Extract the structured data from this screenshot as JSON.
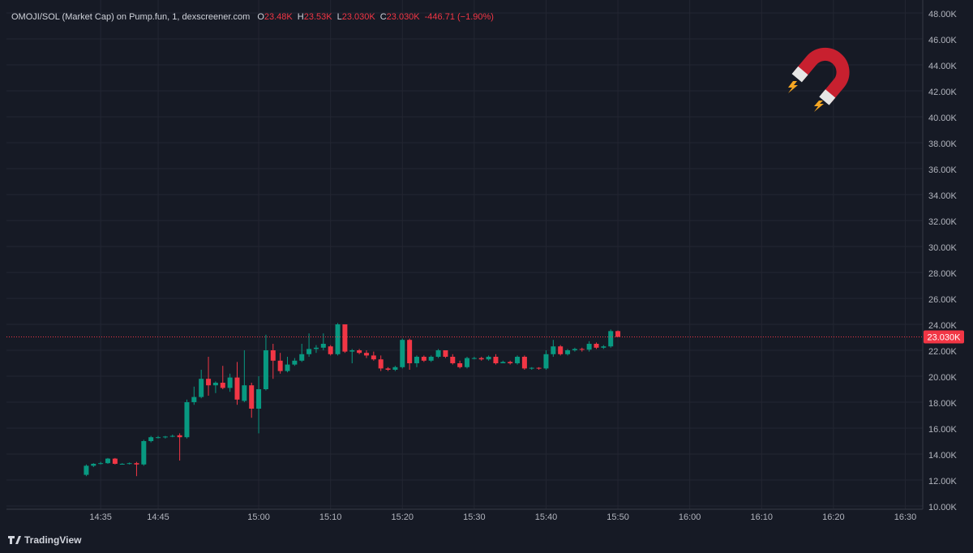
{
  "chart_data": {
    "type": "candlestick",
    "title": "OMOJI/SOL (Market Cap) on Pump.fun, 1, dexscreener.com",
    "ohlc_legend": [
      {
        "key": "O",
        "value": "23.48K"
      },
      {
        "key": "H",
        "value": "23.53K"
      },
      {
        "key": "L",
        "value": "23.030K"
      },
      {
        "key": "C",
        "value": "23.030K"
      }
    ],
    "change": "-446.71 (−1.90%)",
    "branding": "TradingView",
    "up_color": "#089981",
    "down_color": "#f23645",
    "grid": true,
    "last_price": {
      "value": 23030,
      "label": "23.030K"
    },
    "ylim": [
      9750,
      48500
    ],
    "yticks": [
      {
        "value": 10000,
        "label": "10.00K"
      },
      {
        "value": 12000,
        "label": "12.00K"
      },
      {
        "value": 14000,
        "label": "14.00K"
      },
      {
        "value": 16000,
        "label": "16.00K"
      },
      {
        "value": 18000,
        "label": "18.00K"
      },
      {
        "value": 20000,
        "label": "20.00K"
      },
      {
        "value": 22000,
        "label": "22.00K"
      },
      {
        "value": 24000,
        "label": "24.00K"
      },
      {
        "value": 26000,
        "label": "26.00K"
      },
      {
        "value": 28000,
        "label": "28.00K"
      },
      {
        "value": 30000,
        "label": "30.00K"
      },
      {
        "value": 32000,
        "label": "32.00K"
      },
      {
        "value": 34000,
        "label": "34.00K"
      },
      {
        "value": 36000,
        "label": "36.00K"
      },
      {
        "value": 38000,
        "label": "38.00K"
      },
      {
        "value": 40000,
        "label": "40.00K"
      },
      {
        "value": 42000,
        "label": "42.00K"
      },
      {
        "value": 44000,
        "label": "44.00K"
      },
      {
        "value": 46000,
        "label": "46.00K"
      },
      {
        "value": 48000,
        "label": "48.00K"
      }
    ],
    "categories": [
      null,
      null,
      "14:35",
      null,
      null,
      null,
      null,
      null,
      null,
      null,
      "14:45",
      null,
      null,
      null,
      null,
      null,
      null,
      null,
      null,
      null,
      null,
      null,
      null,
      null,
      "15:00",
      null,
      null,
      null,
      null,
      null,
      null,
      null,
      null,
      null,
      "15:10",
      null,
      null,
      null,
      null,
      null,
      null,
      null,
      null,
      null,
      "15:20",
      null,
      null,
      null,
      null,
      null,
      null,
      null,
      null,
      null,
      "15:30",
      null,
      null,
      null,
      null,
      null,
      null,
      null,
      null,
      null,
      "15:40",
      null,
      null,
      null,
      null,
      null,
      null,
      null,
      null,
      null,
      "15:50",
      null,
      null,
      null,
      null,
      null,
      null,
      null,
      null,
      null,
      "16:00",
      null,
      null,
      null,
      null,
      null,
      null,
      null,
      null,
      null,
      "16:10",
      null,
      null,
      null,
      null,
      null,
      null,
      null,
      null,
      null,
      "16:20",
      null,
      null,
      null,
      null,
      null,
      null,
      null,
      null,
      null,
      "16:30"
    ],
    "open": [
      12400,
      13100,
      13250,
      13300,
      13650,
      13250,
      13250,
      13300,
      13200,
      15000,
      15300,
      15300,
      15350,
      15450,
      15300,
      18000,
      18400,
      19800,
      19300,
      19500,
      19100,
      19900,
      18100,
      19300,
      17500,
      19000,
      22000,
      21200,
      20400,
      20900,
      21200,
      21700,
      22100,
      22200,
      22300,
      21700,
      24000,
      21900,
      22000,
      21800,
      21600,
      21300,
      20600,
      20500,
      20700,
      22800,
      21000,
      21500,
      21200,
      21500,
      22000,
      21500,
      21000,
      20700,
      21400,
      21400,
      21300,
      21500,
      21000,
      21100,
      21000,
      21500,
      20600,
      20650,
      20600,
      21700,
      22300,
      21700,
      22000,
      22100,
      22050,
      22500,
      22200,
      22300,
      23480,
      null,
      null,
      null,
      null,
      null,
      null,
      null,
      null,
      null,
      null,
      null,
      null,
      null,
      null,
      null,
      null,
      null,
      null,
      null,
      null,
      null,
      null,
      null,
      null,
      null,
      null,
      null,
      null,
      null,
      null,
      null,
      null,
      null,
      null,
      null,
      null,
      null,
      null,
      null,
      null
    ],
    "high": [
      13200,
      13300,
      13400,
      13700,
      13700,
      13300,
      13350,
      13400,
      15100,
      15400,
      15400,
      15400,
      15500,
      15600,
      18200,
      19200,
      20500,
      21500,
      19600,
      20800,
      20200,
      21100,
      22000,
      19500,
      20000,
      23200,
      22500,
      21800,
      21500,
      21400,
      22500,
      23300,
      22400,
      23300,
      22400,
      24100,
      24000,
      22100,
      22100,
      22000,
      21900,
      21600,
      20700,
      20800,
      22900,
      22900,
      21600,
      21600,
      21600,
      22100,
      22000,
      21700,
      21200,
      21500,
      21500,
      21500,
      21600,
      21700,
      21200,
      21200,
      21600,
      21600,
      20700,
      20700,
      22000,
      22800,
      22400,
      22100,
      22200,
      22200,
      22700,
      22600,
      22400,
      23600,
      23530,
      null,
      null,
      null,
      null,
      null,
      null,
      null,
      null,
      null,
      null,
      null,
      null,
      null,
      null,
      null,
      null,
      null,
      null,
      null,
      null,
      null,
      null,
      null,
      null,
      null,
      null,
      null,
      null,
      null,
      null,
      null,
      null,
      null,
      null,
      null,
      null,
      null,
      null,
      null,
      null
    ],
    "low": [
      12300,
      13000,
      13200,
      13250,
      13200,
      13200,
      13200,
      12300,
      13100,
      14900,
      15200,
      15200,
      15300,
      13500,
      15200,
      17800,
      18300,
      18500,
      18700,
      19000,
      18800,
      17800,
      18000,
      16800,
      15600,
      18900,
      19800,
      20200,
      20300,
      20800,
      21100,
      21500,
      21800,
      22000,
      21600,
      21600,
      21800,
      21000,
      21700,
      21400,
      21200,
      20400,
      20400,
      20400,
      20600,
      20500,
      20700,
      21100,
      21100,
      21400,
      21400,
      20900,
      20600,
      20600,
      21300,
      21200,
      21200,
      20900,
      21000,
      20900,
      20900,
      20500,
      20500,
      20500,
      20500,
      21500,
      21600,
      21600,
      21900,
      21900,
      21900,
      22100,
      22100,
      22200,
      23030,
      null,
      null,
      null,
      null,
      null,
      null,
      null,
      null,
      null,
      null,
      null,
      null,
      null,
      null,
      null,
      null,
      null,
      null,
      null,
      null,
      null,
      null,
      null,
      null,
      null,
      null,
      null,
      null,
      null,
      null,
      null,
      null,
      null,
      null,
      null,
      null,
      null,
      null,
      null,
      null
    ],
    "close": [
      13100,
      13250,
      13300,
      13650,
      13250,
      13250,
      13300,
      13200,
      15000,
      15300,
      15300,
      15350,
      15400,
      15300,
      18000,
      18400,
      19800,
      19300,
      19500,
      19100,
      19900,
      18200,
      19300,
      17500,
      19000,
      22000,
      21200,
      20400,
      20900,
      21200,
      21700,
      22100,
      22200,
      22500,
      21700,
      24000,
      21900,
      22000,
      21800,
      21600,
      21300,
      20600,
      20500,
      20700,
      22800,
      21000,
      21500,
      21200,
      21500,
      22000,
      21500,
      21000,
      20700,
      21400,
      21400,
      21300,
      21500,
      21000,
      21100,
      21000,
      21500,
      20600,
      20650,
      20600,
      21700,
      22300,
      21700,
      22000,
      22100,
      22050,
      22500,
      22200,
      22300,
      23480,
      23030,
      null,
      null,
      null,
      null,
      null,
      null,
      null,
      null,
      null,
      null,
      null,
      null,
      null,
      null,
      null,
      null,
      null,
      null,
      null,
      null,
      null,
      null,
      null,
      null,
      null,
      null,
      null,
      null,
      null,
      null,
      null,
      null,
      null,
      null,
      null,
      null,
      null,
      null,
      null,
      null
    ]
  }
}
